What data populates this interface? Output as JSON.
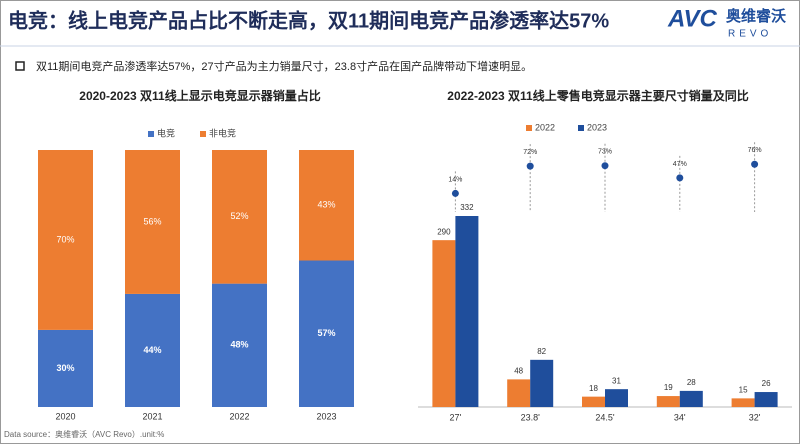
{
  "title": "电竞：线上电竞产品占比不断走高，双11期间电竞产品渗透率达57%",
  "bullet": "双11期间电竞产品渗透率达57%，27寸产品为主力销量尺寸，23.8寸产品在国产品牌带动下增速明显。",
  "source": "Data source：奥维睿沃（AVC Revo）.unit:%",
  "logo": {
    "brand": "AVC",
    "cn": "奥维睿沃",
    "en": "REVO"
  },
  "chart_data": [
    {
      "type": "stacked-bar",
      "title": "2020-2023 双11线上显示电竞显示器销量占比",
      "categories": [
        "2020",
        "2021",
        "2022",
        "2023"
      ],
      "series": [
        {
          "name": "电竞",
          "color": "#4472c4",
          "values": [
            30,
            44,
            48,
            57
          ],
          "value_labels": [
            "30%",
            "44%",
            "48%",
            "57%"
          ]
        },
        {
          "name": "非电竞",
          "color": "#ed7d31",
          "values": [
            70,
            56,
            52,
            43
          ],
          "value_labels": [
            "70%",
            "56%",
            "52%",
            "43%"
          ]
        }
      ],
      "legend": "top"
    },
    {
      "type": "bar",
      "title": "2022-2023 双11线上零售电竞显示器主要尺寸销量及同比",
      "categories": [
        "27'",
        "23.8'",
        "24.5'",
        "34'",
        "32'"
      ],
      "series": [
        {
          "name": "2022",
          "color": "#ed7d31",
          "values": [
            290,
            48,
            18,
            19,
            15
          ]
        },
        {
          "name": "2023",
          "color": "#1f4e9c",
          "values": [
            332,
            82,
            31,
            28,
            26
          ]
        }
      ],
      "growth": {
        "values": [
          14,
          72,
          73,
          47,
          76
        ],
        "value_labels": [
          "14%",
          "72%",
          "73%",
          "47%",
          "76%"
        ],
        "color": "#1f4e9c"
      },
      "legend": "top"
    }
  ]
}
